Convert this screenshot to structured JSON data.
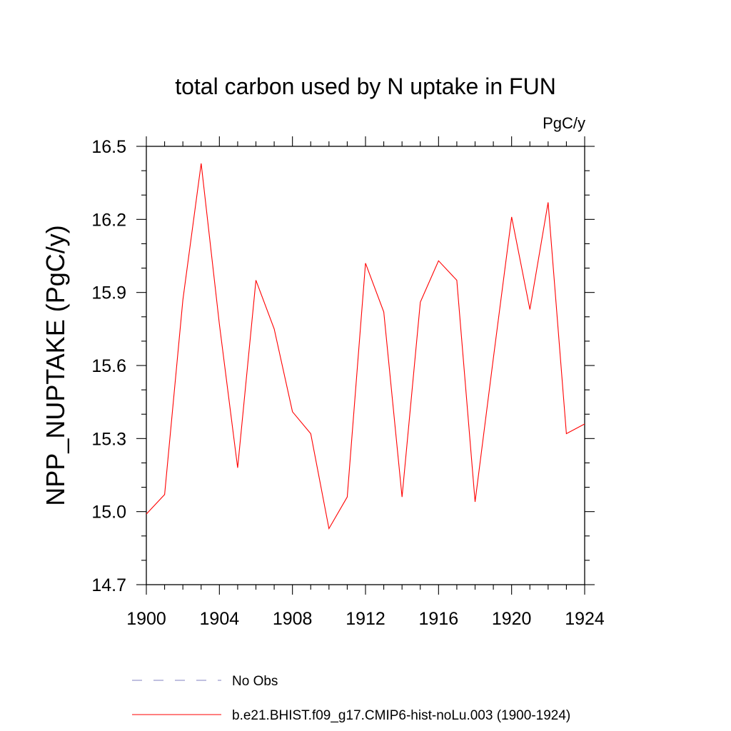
{
  "chart_data": {
    "type": "line",
    "title": "total carbon used by N uptake in FUN",
    "units_label": "PgC/y",
    "ylabel": "NPP_NUPTAKE  (PgC/y)",
    "xlabel": "",
    "xlim": [
      1900,
      1924
    ],
    "ylim": [
      14.7,
      16.5
    ],
    "x_ticks": [
      1900,
      1904,
      1908,
      1912,
      1916,
      1920,
      1924
    ],
    "y_ticks": [
      14.7,
      15.0,
      15.3,
      15.6,
      15.9,
      16.2,
      16.5
    ],
    "x_tick_labels": [
      "1900",
      "1904",
      "1908",
      "1912",
      "1916",
      "1920",
      "1924"
    ],
    "y_tick_labels": [
      "14.7",
      "15.0",
      "15.3",
      "15.6",
      "15.9",
      "16.2",
      "16.5"
    ],
    "x": [
      1900,
      1901,
      1902,
      1903,
      1904,
      1905,
      1906,
      1907,
      1908,
      1909,
      1910,
      1911,
      1912,
      1913,
      1914,
      1915,
      1916,
      1917,
      1918,
      1919,
      1920,
      1921,
      1922,
      1923,
      1924
    ],
    "series": [
      {
        "name": "b.e21.BHIST.f09_g17.CMIP6-hist-noLu.003 (1900-1924)",
        "color": "#ff0000",
        "values": [
          14.99,
          15.07,
          15.87,
          16.43,
          15.77,
          15.18,
          15.95,
          15.75,
          15.41,
          15.32,
          14.93,
          15.06,
          16.02,
          15.82,
          15.06,
          15.86,
          16.03,
          15.95,
          15.04,
          15.63,
          16.21,
          15.83,
          16.27,
          15.32,
          15.36
        ]
      }
    ],
    "legend": [
      {
        "label": "No Obs",
        "color": "#8080c0",
        "style": "dashed"
      },
      {
        "label": "b.e21.BHIST.f09_g17.CMIP6-hist-noLu.003 (1900-1924)",
        "color": "#ff0000",
        "style": "solid"
      }
    ],
    "legend_position": "bottom",
    "grid": false
  }
}
